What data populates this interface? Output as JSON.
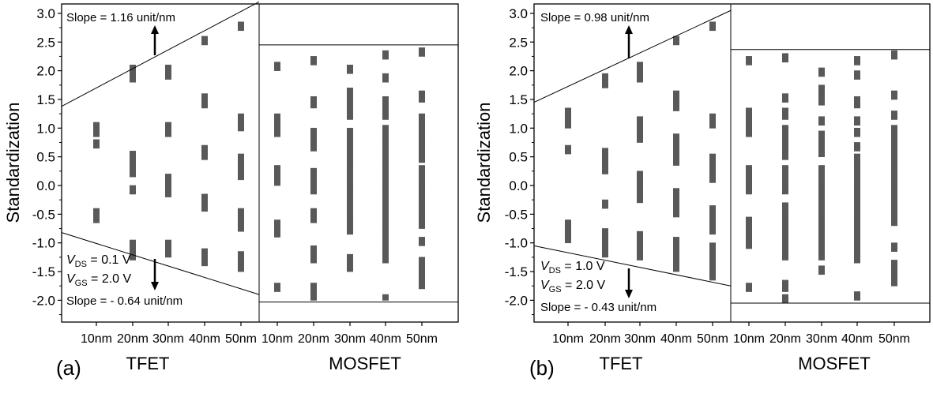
{
  "chart_data": [
    {
      "panel_label": "(a)",
      "type": "scatter",
      "ylabel": "Standardization",
      "ylim": [
        -2.4,
        3.1
      ],
      "yticks": [
        "3.0",
        "2.5",
        "2.0",
        "1.5",
        "1.0",
        "0.5",
        "0.0",
        "-0.5",
        "-1.0",
        "-1.5",
        "-2.0"
      ],
      "groups": [
        {
          "name": "TFET",
          "categories": [
            "10nm",
            "20nm",
            "30nm",
            "40nm",
            "50nm"
          ]
        },
        {
          "name": "MOSFET",
          "categories": [
            "10nm",
            "20nm",
            "30nm",
            "40nm",
            "50nm"
          ]
        }
      ],
      "conditions": {
        "vds": "= 0.1 V",
        "vgs": "= 2.0 V"
      },
      "annotations": {
        "upper_slope": "Slope = 1.16 unit/nm",
        "lower_slope": "Slope = - 0.64 unit/nm"
      },
      "tfet_upper_line": {
        "x": [
          0,
          5
        ],
        "y": [
          1.38,
          3.2
        ]
      },
      "tfet_lower_line": {
        "x": [
          0,
          5
        ],
        "y": [
          -0.82,
          -1.9
        ]
      },
      "mosfet_upper_level": 2.45,
      "mosfet_lower_level": -2.03,
      "series": [
        {
          "group": "TFET",
          "category": "10nm",
          "values": [
            1.05,
            1.0,
            0.95,
            0.9,
            0.75,
            0.7,
            -0.45,
            -0.5,
            -0.55,
            -0.6
          ]
        },
        {
          "group": "TFET",
          "category": "20nm",
          "values": [
            2.05,
            2.0,
            1.95,
            1.9,
            1.85,
            0.55,
            0.5,
            0.45,
            0.4,
            0.35,
            0.3,
            0.25,
            0.2,
            -0.05,
            -0.1,
            -1.0,
            -1.05,
            -1.1,
            -1.15,
            -1.2,
            -1.25
          ]
        },
        {
          "group": "TFET",
          "category": "30nm",
          "values": [
            2.05,
            2.0,
            1.95,
            1.9,
            1.05,
            1.0,
            0.95,
            0.9,
            0.15,
            0.1,
            0.05,
            0.0,
            -0.05,
            -0.1,
            -0.15,
            -1.0,
            -1.05,
            -1.1,
            -1.15,
            -1.2
          ]
        },
        {
          "group": "TFET",
          "category": "40nm",
          "values": [
            2.55,
            2.5,
            1.55,
            1.5,
            1.45,
            1.4,
            0.65,
            0.6,
            0.55,
            0.5,
            -0.2,
            -0.25,
            -0.3,
            -0.35,
            -0.4,
            -1.15,
            -1.2,
            -1.25,
            -1.3,
            -1.35
          ]
        },
        {
          "group": "TFET",
          "category": "50nm",
          "values": [
            2.8,
            2.75,
            1.2,
            1.15,
            1.1,
            1.05,
            1.0,
            0.5,
            0.45,
            0.4,
            0.35,
            0.3,
            0.25,
            0.2,
            0.15,
            -0.45,
            -0.5,
            -0.55,
            -0.6,
            -0.65,
            -0.7,
            -0.75,
            -1.2,
            -1.25,
            -1.3,
            -1.35,
            -1.4,
            -1.45
          ]
        },
        {
          "group": "MOSFET",
          "category": "10nm",
          "values": [
            2.1,
            2.05,
            1.2,
            1.15,
            1.1,
            1.05,
            1.0,
            0.95,
            0.9,
            0.3,
            0.25,
            0.2,
            0.1,
            0.05,
            -0.65,
            -0.7,
            -0.75,
            -0.8,
            -0.85,
            -1.75,
            -1.8
          ]
        },
        {
          "group": "MOSFET",
          "category": "20nm",
          "values": [
            2.2,
            2.15,
            1.5,
            1.45,
            1.4,
            0.95,
            0.9,
            0.85,
            0.8,
            0.75,
            0.7,
            0.65,
            0.25,
            0.2,
            0.15,
            0.1,
            0.05,
            0.0,
            -0.05,
            -0.1,
            -0.45,
            -0.5,
            -0.55,
            -0.6,
            -1.1,
            -1.15,
            -1.2,
            -1.25,
            -1.3,
            -1.75,
            -1.8,
            -1.9,
            -1.95
          ]
        },
        {
          "group": "MOSFET",
          "category": "30nm",
          "values": [
            2.05,
            2.0,
            1.65,
            1.6,
            1.55,
            1.5,
            1.45,
            1.4,
            1.35,
            1.3,
            1.25,
            1.2,
            0.95,
            0.9,
            0.85,
            0.8,
            0.75,
            0.7,
            0.65,
            0.6,
            0.55,
            0.5,
            0.45,
            0.4,
            0.35,
            0.3,
            0.25,
            0.2,
            0.15,
            0.1,
            0.05,
            0.0,
            -0.05,
            -0.1,
            -0.15,
            -0.2,
            -0.3,
            -0.35,
            -0.4,
            -0.45,
            -0.5,
            -0.55,
            -0.6,
            -0.65,
            -0.7,
            -0.75,
            -0.8,
            -1.25,
            -1.3,
            -1.35,
            -1.4,
            -1.45
          ]
        },
        {
          "group": "MOSFET",
          "category": "40nm",
          "values": [
            2.3,
            2.25,
            1.9,
            1.85,
            1.5,
            1.45,
            1.4,
            1.35,
            1.3,
            1.25,
            1.2,
            1.0,
            0.95,
            0.9,
            0.85,
            0.8,
            0.75,
            0.7,
            0.65,
            0.6,
            0.55,
            0.5,
            0.45,
            0.4,
            0.35,
            0.3,
            0.25,
            0.2,
            0.15,
            0.1,
            0.05,
            0.0,
            -0.05,
            -0.1,
            -0.15,
            -0.2,
            -0.25,
            -0.3,
            -0.35,
            -0.4,
            -0.5,
            -0.55,
            -0.6,
            -0.65,
            -0.7,
            -0.75,
            -0.8,
            -0.85,
            -0.9,
            -1.0,
            -1.05,
            -1.1,
            -1.15,
            -1.2,
            -1.25,
            -1.3,
            -1.95
          ]
        },
        {
          "group": "MOSFET",
          "category": "50nm",
          "values": [
            2.35,
            2.3,
            1.6,
            1.55,
            1.5,
            1.2,
            1.15,
            1.1,
            1.05,
            1.0,
            0.95,
            0.9,
            0.85,
            0.8,
            0.75,
            0.7,
            0.65,
            0.6,
            0.55,
            0.5,
            0.45,
            0.3,
            0.25,
            0.2,
            0.15,
            0.1,
            0.05,
            0.0,
            -0.05,
            -0.1,
            -0.15,
            -0.2,
            -0.25,
            -0.3,
            -0.35,
            -0.4,
            -0.45,
            -0.5,
            -0.55,
            -0.6,
            -0.65,
            -0.7,
            -0.95,
            -1.0,
            -1.3,
            -1.35,
            -1.4,
            -1.45,
            -1.5,
            -1.55,
            -1.65,
            -1.7,
            -1.75
          ]
        }
      ]
    },
    {
      "panel_label": "(b)",
      "type": "scatter",
      "ylabel": "Standardization",
      "ylim": [
        -2.4,
        3.1
      ],
      "yticks": [
        "3.0",
        "2.5",
        "2.0",
        "1.5",
        "1.0",
        "0.5",
        "0.0",
        "-0.5",
        "-1.0",
        "-1.5",
        "-2.0"
      ],
      "groups": [
        {
          "name": "TFET",
          "categories": [
            "10nm",
            "20nm",
            "30nm",
            "40nm",
            "50nm"
          ]
        },
        {
          "name": "MOSFET",
          "categories": [
            "10nm",
            "20nm",
            "30nm",
            "40nm",
            "50nm"
          ]
        }
      ],
      "conditions": {
        "vds": "= 1.0 V",
        "vgs": "= 2.0 V"
      },
      "annotations": {
        "upper_slope": "Slope = 0.98 unit/nm",
        "lower_slope": "Slope = - 0.43 unit/nm"
      },
      "tfet_upper_line": {
        "x": [
          0,
          5
        ],
        "y": [
          1.45,
          3.05
        ]
      },
      "tfet_lower_line": {
        "x": [
          0,
          5
        ],
        "y": [
          -1.05,
          -1.75
        ]
      },
      "mosfet_upper_level": 2.37,
      "mosfet_lower_level": -2.05,
      "series": [
        {
          "group": "TFET",
          "category": "10nm",
          "values": [
            1.3,
            1.25,
            1.2,
            1.15,
            1.1,
            1.05,
            0.65,
            0.6,
            -0.65,
            -0.7,
            -0.75,
            -0.8,
            -0.9,
            -0.95
          ]
        },
        {
          "group": "TFET",
          "category": "20nm",
          "values": [
            1.9,
            1.85,
            1.8,
            1.75,
            0.6,
            0.55,
            0.5,
            0.45,
            0.4,
            0.35,
            0.3,
            0.25,
            -0.3,
            -0.35,
            -0.8,
            -0.85,
            -0.9,
            -0.95,
            -1.0,
            -1.05,
            -1.1,
            -1.15,
            -1.2
          ]
        },
        {
          "group": "TFET",
          "category": "30nm",
          "values": [
            2.1,
            2.05,
            2.0,
            1.95,
            1.9,
            1.85,
            1.15,
            1.1,
            1.05,
            1.0,
            0.95,
            0.9,
            0.85,
            0.8,
            0.2,
            0.15,
            0.1,
            0.05,
            0.0,
            -0.05,
            -0.1,
            -0.15,
            -0.2,
            -0.25,
            -0.85,
            -0.9,
            -0.95,
            -1.0,
            -1.05,
            -1.1,
            -1.15,
            -1.2,
            -1.25
          ]
        },
        {
          "group": "TFET",
          "category": "40nm",
          "values": [
            2.55,
            2.5,
            1.6,
            1.55,
            1.5,
            1.45,
            1.4,
            1.35,
            0.85,
            0.8,
            0.75,
            0.7,
            0.65,
            0.6,
            0.55,
            0.5,
            0.45,
            0.4,
            -0.1,
            -0.15,
            -0.2,
            -0.25,
            -0.3,
            -0.35,
            -0.4,
            -0.45,
            -0.5,
            -0.95,
            -1.0,
            -1.05,
            -1.1,
            -1.15,
            -1.2,
            -1.25,
            -1.3,
            -1.35,
            -1.4,
            -1.45
          ]
        },
        {
          "group": "TFET",
          "category": "50nm",
          "values": [
            2.8,
            2.75,
            1.2,
            1.15,
            1.1,
            1.05,
            0.5,
            0.45,
            0.4,
            0.35,
            0.3,
            0.25,
            0.2,
            0.15,
            0.1,
            -0.4,
            -0.45,
            -0.5,
            -0.55,
            -0.6,
            -0.65,
            -0.75,
            -0.8,
            -1.05,
            -1.1,
            -1.15,
            -1.2,
            -1.3,
            -1.35,
            -1.4,
            -1.45,
            -1.5,
            -1.55,
            -1.6
          ]
        },
        {
          "group": "MOSFET",
          "category": "10nm",
          "values": [
            2.2,
            2.15,
            1.3,
            1.25,
            1.2,
            1.15,
            1.1,
            1.05,
            1.0,
            0.95,
            0.9,
            0.3,
            0.25,
            0.2,
            0.15,
            0.1,
            0.05,
            0.0,
            -0.05,
            -0.1,
            -0.6,
            -0.65,
            -0.7,
            -0.75,
            -0.8,
            -0.85,
            -0.95,
            -1.0,
            -1.05,
            -1.75,
            -1.8
          ]
        },
        {
          "group": "MOSFET",
          "category": "20nm",
          "values": [
            2.25,
            2.2,
            1.55,
            1.5,
            1.3,
            1.25,
            1.2,
            1.0,
            0.95,
            0.9,
            0.85,
            0.75,
            0.7,
            0.65,
            0.6,
            0.55,
            0.5,
            0.3,
            0.25,
            0.2,
            0.15,
            0.1,
            0.05,
            0.0,
            -0.05,
            -0.1,
            -0.35,
            -0.4,
            -0.45,
            -0.5,
            -0.55,
            -0.6,
            -0.65,
            -0.7,
            -0.75,
            -0.8,
            -0.85,
            -0.9,
            -0.95,
            -1.0,
            -1.05,
            -1.1,
            -1.15,
            -1.2,
            -1.25,
            -1.7,
            -1.75,
            -1.8,
            -1.95,
            -2.0
          ]
        },
        {
          "group": "MOSFET",
          "category": "30nm",
          "values": [
            2.0,
            1.95,
            1.7,
            1.65,
            1.6,
            1.55,
            1.5,
            1.45,
            1.15,
            1.1,
            0.9,
            0.85,
            0.8,
            0.75,
            0.7,
            0.65,
            0.6,
            0.55,
            0.3,
            0.25,
            0.2,
            0.15,
            0.1,
            0.05,
            0.0,
            -0.05,
            -0.1,
            -0.2,
            -0.25,
            -0.3,
            -0.35,
            -0.4,
            -0.45,
            -0.5,
            -0.6,
            -0.65,
            -0.75,
            -0.8,
            -0.85,
            -0.9,
            -0.95,
            -1.0,
            -1.05,
            -1.1,
            -1.2,
            -1.25,
            -1.45,
            -1.5
          ]
        },
        {
          "group": "MOSFET",
          "category": "40nm",
          "values": [
            2.2,
            2.15,
            1.95,
            1.9,
            1.5,
            1.45,
            1.4,
            1.15,
            1.1,
            0.95,
            0.9,
            0.7,
            0.65,
            0.5,
            0.45,
            0.4,
            0.35,
            0.3,
            0.25,
            0.2,
            0.15,
            0.1,
            0.05,
            0.0,
            -0.05,
            -0.1,
            -0.15,
            -0.2,
            -0.3,
            -0.35,
            -0.4,
            -0.45,
            -0.5,
            -0.55,
            -0.6,
            -0.65,
            -0.7,
            -0.75,
            -0.85,
            -0.9,
            -0.95,
            -1.0,
            -1.05,
            -1.1,
            -1.15,
            -1.2,
            -1.3,
            -1.9,
            -1.95
          ]
        },
        {
          "group": "MOSFET",
          "category": "50nm",
          "values": [
            2.3,
            2.25,
            1.6,
            1.55,
            1.25,
            1.2,
            1.0,
            0.95,
            0.9,
            0.85,
            0.8,
            0.7,
            0.65,
            0.6,
            0.55,
            0.5,
            0.45,
            0.4,
            0.35,
            0.3,
            0.25,
            0.2,
            0.15,
            0.1,
            0.05,
            0.0,
            -0.05,
            -0.1,
            -0.2,
            -0.25,
            -0.3,
            -0.35,
            -0.4,
            -0.45,
            -0.5,
            -0.55,
            -0.6,
            -0.65,
            -1.05,
            -1.1,
            -1.35,
            -1.4,
            -1.5,
            -1.55,
            -1.6,
            -1.65,
            -1.7
          ]
        }
      ]
    }
  ]
}
